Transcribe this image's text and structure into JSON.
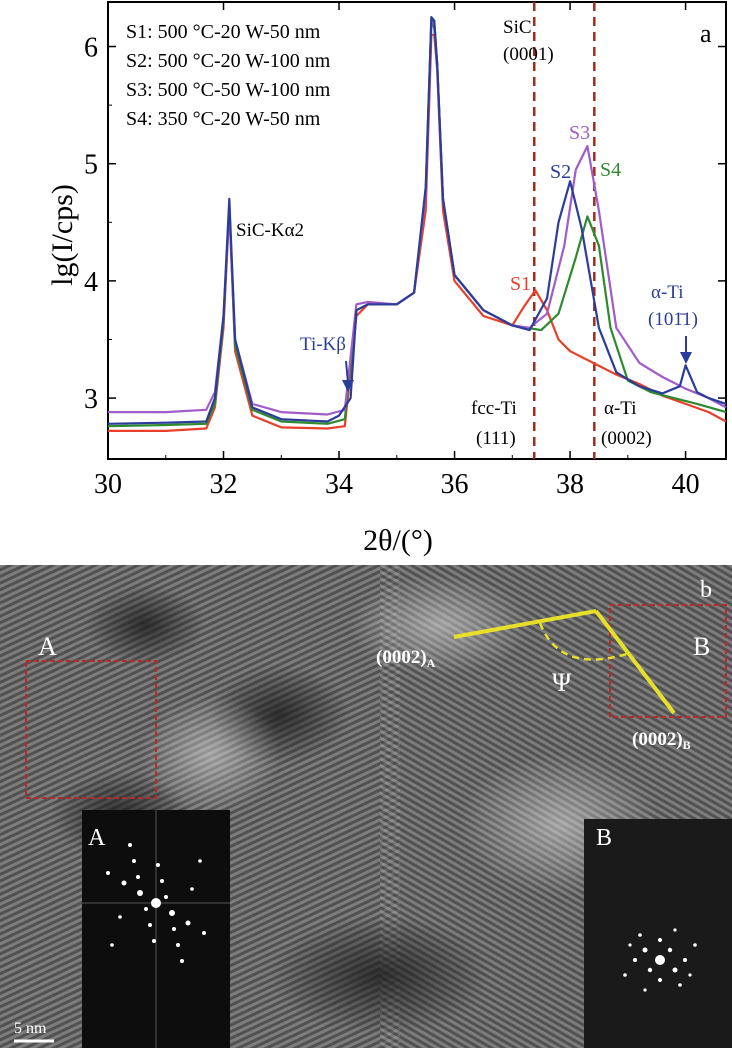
{
  "chart_data": {
    "type": "line",
    "panel_label": "a",
    "ylabel": "lg(I/cps)",
    "xlabel": "2θ/(°)",
    "xlim": [
      30,
      40.7
    ],
    "ylim": [
      2.48,
      6.38
    ],
    "xticks": [
      30,
      32,
      34,
      36,
      38,
      40
    ],
    "yticks": [
      3,
      4,
      5,
      6
    ],
    "legend_lines": [
      "S1: 500 °C-20 W-50 nm",
      "S2: 500 °C-20 W-100 nm",
      "S3: 500 °C-50 W-100 nm",
      "S4: 350 °C-20 W-50 nm"
    ],
    "colors": {
      "S1": "#e8402a",
      "S2": "#2b3c9a",
      "S3": "#a05cc8",
      "S4": "#2f8a2f",
      "ref": "#a52a1e",
      "annot_blue": "#2b3c9a"
    },
    "ref_lines": [
      37.38,
      38.42
    ],
    "series": [
      {
        "name": "S1",
        "x": [
          30,
          31,
          31.7,
          31.85,
          32.0,
          32.1,
          32.2,
          32.5,
          33,
          33.8,
          34.1,
          34.3,
          34.5,
          35,
          35.3,
          35.5,
          35.6,
          35.65,
          35.7,
          35.8,
          36,
          36.5,
          37,
          37.2,
          37.4,
          37.6,
          37.8,
          38,
          38.4,
          38.8,
          39.2,
          39.6,
          40,
          40.4,
          40.7
        ],
        "y": [
          2.72,
          2.72,
          2.74,
          2.92,
          3.6,
          4.62,
          3.4,
          2.85,
          2.75,
          2.74,
          2.76,
          3.7,
          3.8,
          3.8,
          3.9,
          4.6,
          6.1,
          6.1,
          5.8,
          4.6,
          4.0,
          3.7,
          3.62,
          3.78,
          3.92,
          3.75,
          3.5,
          3.4,
          3.3,
          3.2,
          3.12,
          3.02,
          2.95,
          2.88,
          2.8
        ]
      },
      {
        "name": "S2",
        "x": [
          30,
          31,
          31.7,
          31.85,
          32.0,
          32.1,
          32.2,
          32.5,
          33,
          33.8,
          34.0,
          34.2,
          34.3,
          34.5,
          35,
          35.3,
          35.5,
          35.6,
          35.65,
          35.7,
          35.8,
          36,
          36.5,
          37,
          37.3,
          37.6,
          37.8,
          38,
          38.2,
          38.5,
          38.8,
          39.2,
          39.6,
          39.9,
          40,
          40.2,
          40.4,
          40.7
        ],
        "y": [
          2.78,
          2.79,
          2.8,
          3.0,
          3.7,
          4.7,
          3.5,
          2.92,
          2.82,
          2.8,
          2.85,
          3.0,
          3.75,
          3.8,
          3.8,
          3.9,
          4.8,
          6.25,
          6.22,
          5.85,
          4.7,
          4.05,
          3.75,
          3.62,
          3.58,
          3.85,
          4.5,
          4.85,
          4.45,
          3.6,
          3.22,
          3.1,
          3.04,
          3.1,
          3.28,
          3.05,
          3.0,
          2.95
        ]
      },
      {
        "name": "S3",
        "x": [
          30,
          31,
          31.7,
          31.85,
          32.0,
          32.1,
          32.2,
          32.5,
          33,
          33.8,
          34.1,
          34.3,
          34.5,
          35,
          35.3,
          35.5,
          35.6,
          35.65,
          35.7,
          35.8,
          36,
          36.5,
          37,
          37.3,
          37.6,
          37.9,
          38.1,
          38.3,
          38.5,
          38.8,
          39.2,
          39.6,
          40,
          40.4,
          40.7
        ],
        "y": [
          2.88,
          2.88,
          2.9,
          3.05,
          3.7,
          4.6,
          3.5,
          2.95,
          2.88,
          2.86,
          2.9,
          3.8,
          3.82,
          3.8,
          3.9,
          4.75,
          6.2,
          6.2,
          5.85,
          4.7,
          4.05,
          3.75,
          3.62,
          3.6,
          3.72,
          4.3,
          4.95,
          5.15,
          4.6,
          3.6,
          3.3,
          3.18,
          3.08,
          3.0,
          2.92
        ]
      },
      {
        "name": "S4",
        "x": [
          30,
          31,
          31.7,
          31.85,
          32.0,
          32.1,
          32.2,
          32.5,
          33,
          33.8,
          34.1,
          34.3,
          34.5,
          35,
          35.3,
          35.5,
          35.6,
          35.65,
          35.7,
          35.8,
          36,
          36.5,
          37,
          37.5,
          37.8,
          38.1,
          38.3,
          38.5,
          38.7,
          39,
          39.4,
          39.8,
          40.2,
          40.7
        ],
        "y": [
          2.76,
          2.77,
          2.78,
          2.95,
          3.65,
          4.65,
          3.45,
          2.9,
          2.8,
          2.78,
          2.82,
          3.75,
          3.8,
          3.8,
          3.9,
          4.75,
          6.25,
          6.15,
          5.85,
          4.7,
          4.05,
          3.75,
          3.62,
          3.58,
          3.72,
          4.2,
          4.55,
          4.3,
          3.6,
          3.15,
          3.05,
          3.0,
          2.95,
          2.88
        ]
      }
    ],
    "annotations": [
      {
        "text": "SiC-Kα2"
      },
      {
        "text": "SiC"
      },
      {
        "text": "(0001)"
      },
      {
        "text": "Ti-Kβ"
      },
      {
        "text": "S1"
      },
      {
        "text": "S2"
      },
      {
        "text": "S3"
      },
      {
        "text": "S4"
      },
      {
        "text": "α-Ti"
      },
      {
        "text": "(101̄1)"
      },
      {
        "text": "fcc-Ti"
      },
      {
        "text": "(111)"
      },
      {
        "text": "α-Ti"
      },
      {
        "text": "(0002)"
      }
    ]
  },
  "panel_b": {
    "panel_label": "b",
    "region_a_label": "A",
    "region_b_label": "B",
    "plane_a_label": "(0002)A",
    "plane_b_label": "(0002)B",
    "angle_label": "Ψ",
    "inset_a_label": "A",
    "inset_b_label": "B",
    "scale_bar_label": "5 nm",
    "colors": {
      "box": "#b82a2a",
      "lines": "#e6e02a"
    }
  }
}
